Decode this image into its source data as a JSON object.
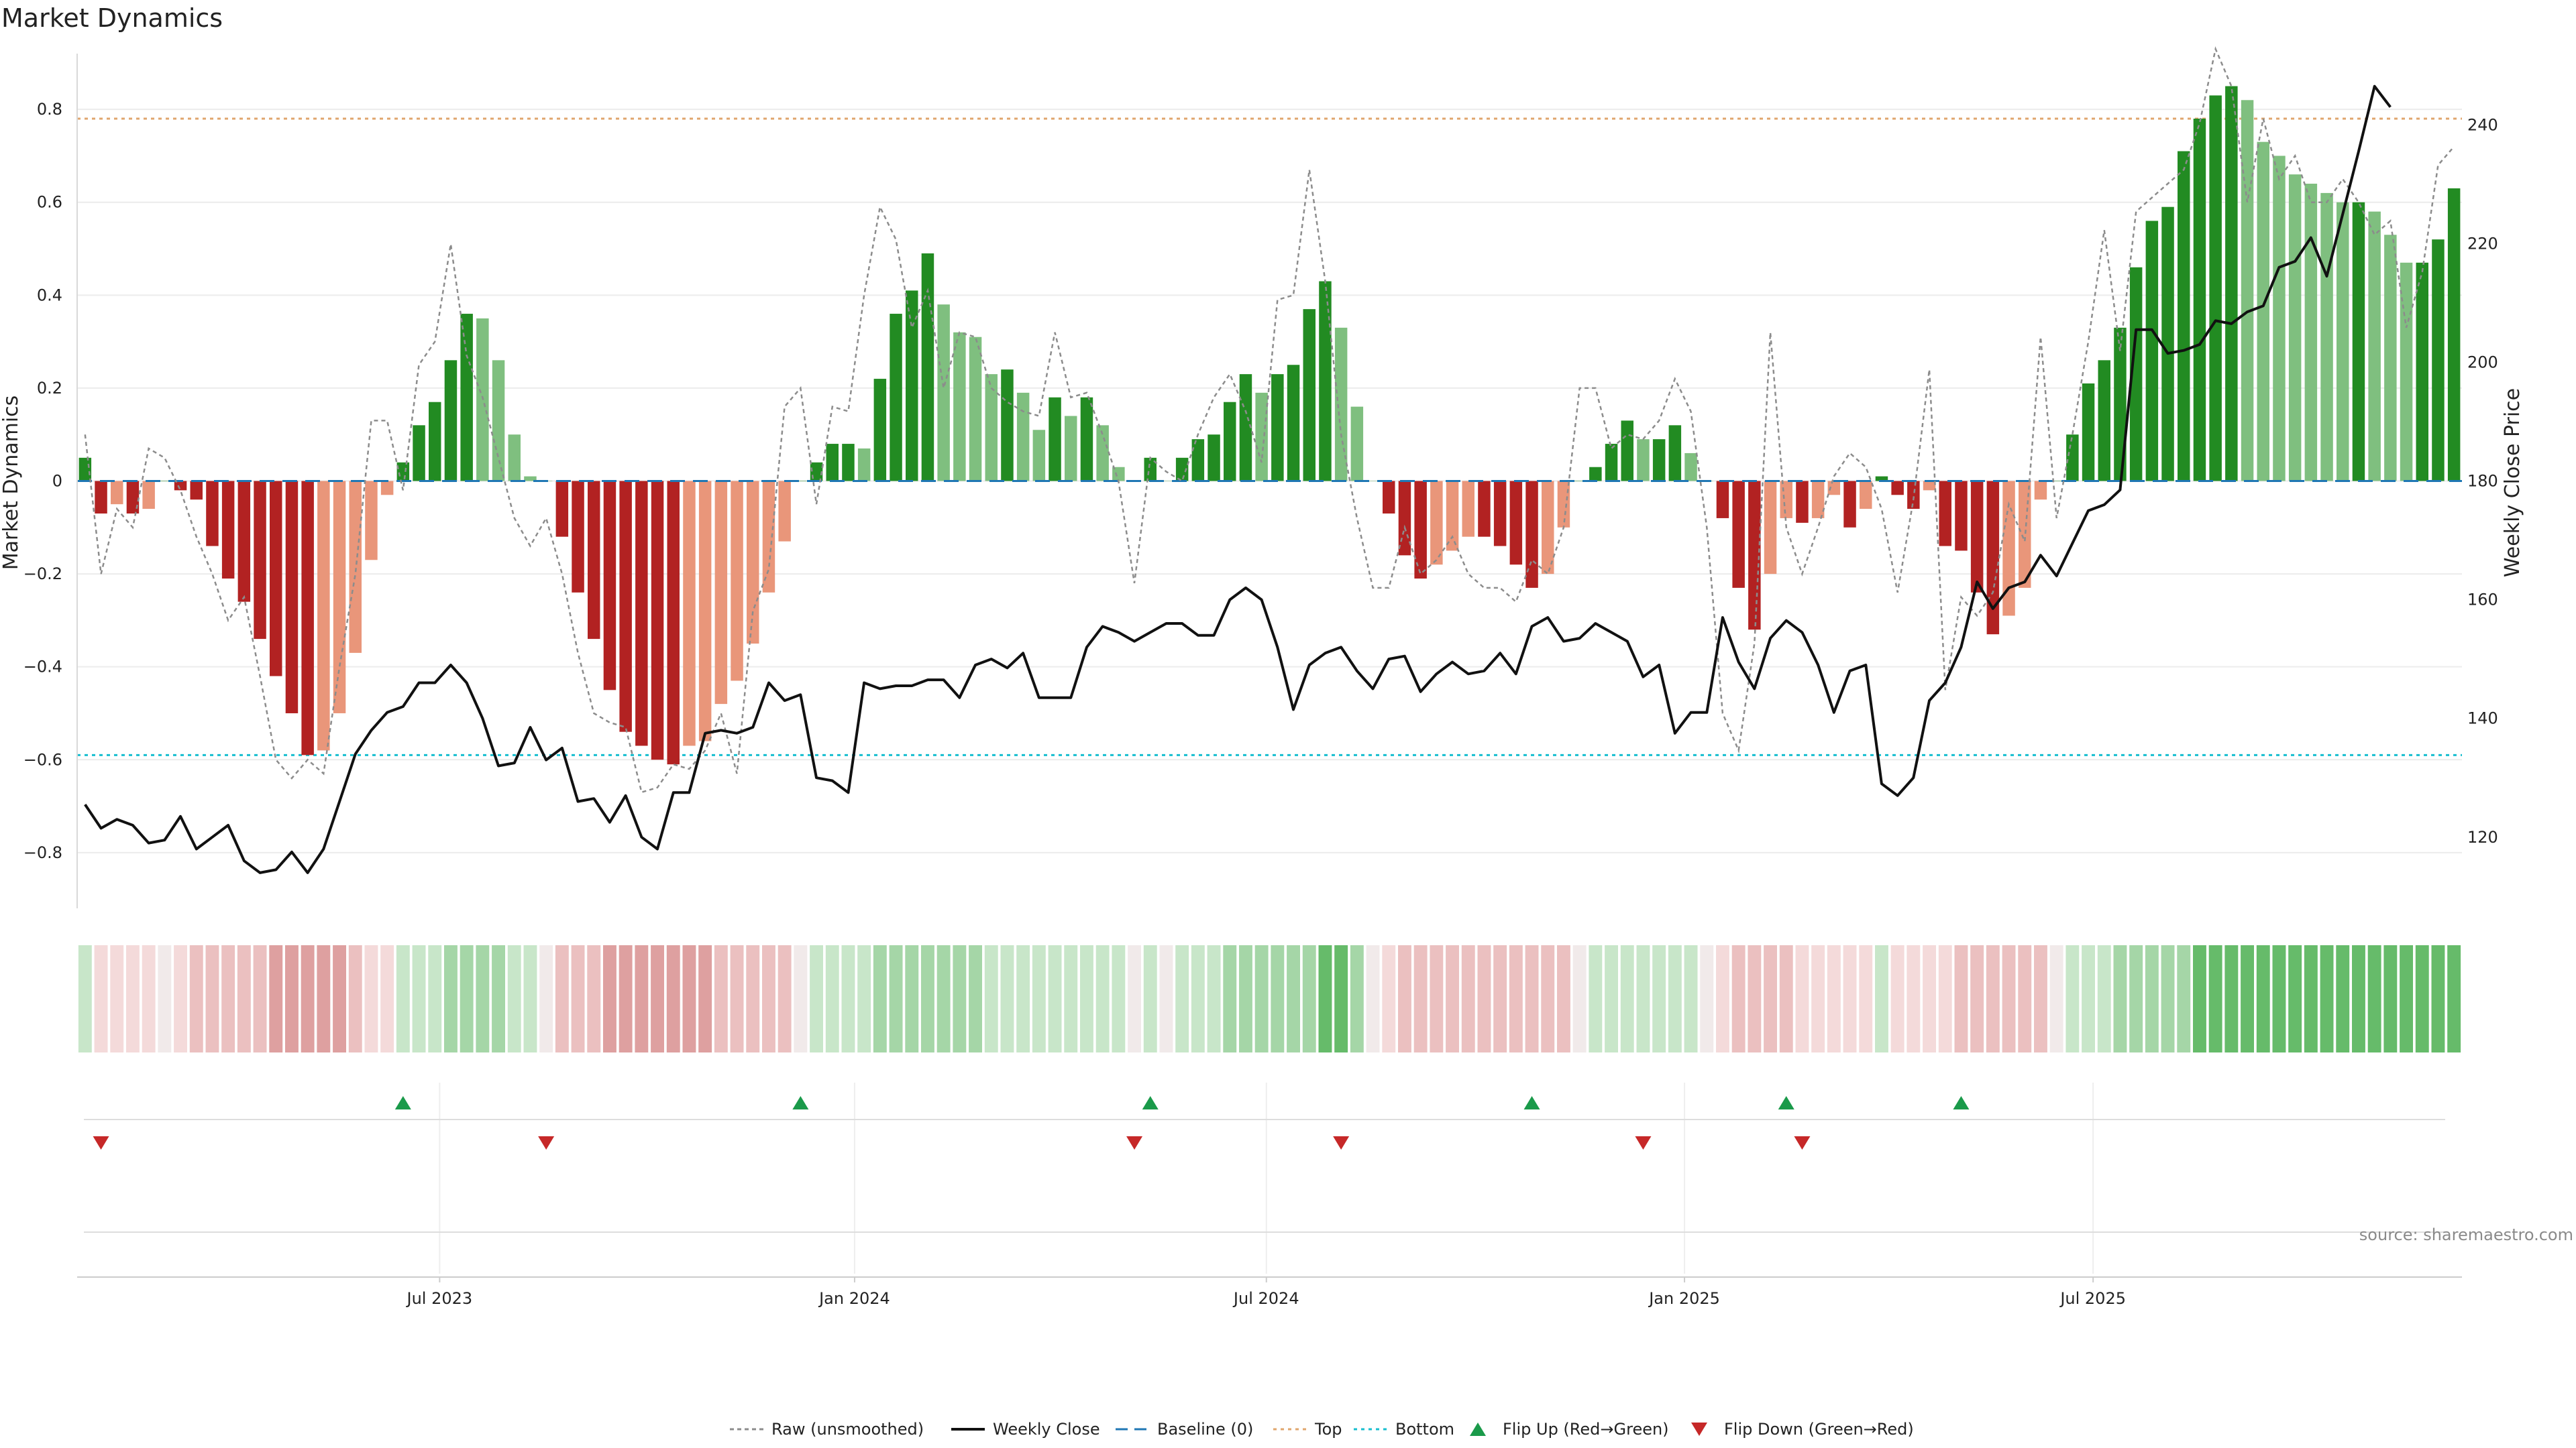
{
  "chart_data": {
    "type": "bar",
    "title": "Market Dynamics",
    "ylabel_left": "Market Dynamics",
    "ylabel_right": "Weekly Close Price",
    "ylim_left": [
      -0.92,
      0.92
    ],
    "ylim_right": [
      108,
      252
    ],
    "yticks_left": [
      -0.8,
      -0.6,
      -0.4,
      -0.2,
      0,
      0.2,
      0.4,
      0.6,
      0.8
    ],
    "ytick_labels_left": [
      "−0.8",
      "−0.6",
      "−0.4",
      "−0.2",
      "0",
      "0.2",
      "0.4",
      "0.6",
      "0.8"
    ],
    "yticks_right": [
      120,
      140,
      160,
      180,
      200,
      220,
      240
    ],
    "ytick_labels_right": [
      "120",
      "140",
      "160",
      "180",
      "200",
      "220",
      "240"
    ],
    "xticks": [
      {
        "week": 22.3,
        "label": "Jul 2023"
      },
      {
        "week": 48.4,
        "label": "Jan 2024"
      },
      {
        "week": 74.3,
        "label": "Jul 2024"
      },
      {
        "week": 100.6,
        "label": "Jan 2025"
      },
      {
        "week": 126.3,
        "label": "Jul 2025"
      }
    ],
    "top_level": 0.78,
    "bottom_level": -0.59,
    "colors": {
      "bar_strong_up": "#228b22",
      "bar_weak_up": "#7fbf7f",
      "bar_strong_down": "#b22222",
      "bar_weak_down": "#e9967a",
      "close_line": "#111111",
      "raw_line": "#8c8c8c",
      "baseline": "#1f77b4",
      "top_line": "#e0a66e",
      "bottom_line": "#17becf",
      "flip_up": "#1a9a4a",
      "flip_down": "#c62828"
    },
    "smoothed": [
      0.05,
      -0.07,
      -0.05,
      -0.07,
      -0.06,
      0.0,
      -0.02,
      -0.04,
      -0.14,
      -0.21,
      -0.26,
      -0.34,
      -0.42,
      -0.5,
      -0.59,
      -0.58,
      -0.5,
      -0.37,
      -0.17,
      -0.03,
      0.04,
      0.12,
      0.17,
      0.26,
      0.36,
      0.35,
      0.26,
      0.1,
      0.01,
      0.0,
      -0.12,
      -0.24,
      -0.34,
      -0.45,
      -0.54,
      -0.57,
      -0.6,
      -0.61,
      -0.57,
      -0.56,
      -0.48,
      -0.43,
      -0.35,
      -0.24,
      -0.13,
      0.0,
      0.04,
      0.08,
      0.08,
      0.07,
      0.22,
      0.36,
      0.41,
      0.49,
      0.38,
      0.32,
      0.31,
      0.23,
      0.24,
      0.19,
      0.11,
      0.18,
      0.14,
      0.18,
      0.12,
      0.03,
      0.0,
      0.05,
      0.0,
      0.05,
      0.09,
      0.1,
      0.17,
      0.23,
      0.19,
      0.23,
      0.25,
      0.37,
      0.43,
      0.33,
      0.16,
      0.0,
      -0.07,
      -0.16,
      -0.21,
      -0.18,
      -0.15,
      -0.12,
      -0.12,
      -0.14,
      -0.18,
      -0.23,
      -0.2,
      -0.1,
      0.0,
      0.03,
      0.08,
      0.13,
      0.09,
      0.09,
      0.12,
      0.06,
      0.0,
      -0.08,
      -0.23,
      -0.32,
      -0.2,
      -0.08,
      -0.09,
      -0.08,
      -0.03,
      -0.1,
      -0.06,
      0.01,
      -0.03,
      -0.06,
      -0.02,
      -0.14,
      -0.15,
      -0.24,
      -0.33,
      -0.29,
      -0.23,
      -0.04,
      0.0,
      0.1,
      0.21,
      0.26,
      0.33,
      0.46,
      0.56,
      0.59,
      0.71,
      0.78,
      0.83,
      0.85,
      0.82,
      0.73,
      0.7,
      0.66,
      0.64,
      0.62,
      0.6,
      0.6,
      0.58,
      0.53,
      0.47,
      0.47,
      0.52,
      0.63
    ],
    "raw": [
      0.1,
      -0.2,
      -0.06,
      -0.1,
      0.07,
      0.05,
      -0.02,
      -0.12,
      -0.2,
      -0.3,
      -0.25,
      -0.42,
      -0.6,
      -0.64,
      -0.6,
      -0.63,
      -0.4,
      -0.2,
      0.13,
      0.13,
      -0.02,
      0.25,
      0.3,
      0.51,
      0.27,
      0.18,
      0.05,
      -0.08,
      -0.14,
      -0.08,
      -0.2,
      -0.37,
      -0.5,
      -0.52,
      -0.53,
      -0.67,
      -0.66,
      -0.61,
      -0.62,
      -0.58,
      -0.5,
      -0.63,
      -0.28,
      -0.19,
      0.16,
      0.2,
      -0.05,
      0.16,
      0.15,
      0.4,
      0.59,
      0.52,
      0.33,
      0.41,
      0.2,
      0.32,
      0.31,
      0.2,
      0.17,
      0.15,
      0.14,
      0.32,
      0.18,
      0.19,
      0.1,
      0.0,
      -0.22,
      0.05,
      0.02,
      0.0,
      0.1,
      0.18,
      0.23,
      0.15,
      0.04,
      0.39,
      0.4,
      0.67,
      0.43,
      0.1,
      -0.08,
      -0.23,
      -0.23,
      -0.1,
      -0.2,
      -0.17,
      -0.12,
      -0.2,
      -0.23,
      -0.23,
      -0.26,
      -0.17,
      -0.2,
      -0.1,
      0.2,
      0.2,
      0.07,
      0.1,
      0.09,
      0.13,
      0.22,
      0.15,
      -0.1,
      -0.5,
      -0.58,
      -0.35,
      0.32,
      -0.1,
      -0.2,
      -0.1,
      0.01,
      0.06,
      0.03,
      -0.06,
      -0.24,
      -0.04,
      0.24,
      -0.45,
      -0.25,
      -0.29,
      -0.24,
      -0.05,
      -0.13,
      0.31,
      -0.08,
      0.1,
      0.3,
      0.54,
      0.28,
      0.58,
      0.61,
      0.64,
      0.67,
      0.77,
      0.93,
      0.85,
      0.6,
      0.78,
      0.65,
      0.7,
      0.6,
      0.6,
      0.65,
      0.6,
      0.53,
      0.56,
      0.33,
      0.45,
      0.68,
      0.72
    ],
    "close": [
      125.5,
      121.5,
      123,
      122,
      119,
      119.5,
      123.5,
      118,
      120,
      122,
      116,
      114,
      114.5,
      117.5,
      114,
      118,
      126,
      134,
      138,
      141,
      142,
      146,
      146,
      149,
      146,
      140,
      132,
      132.5,
      138.5,
      133,
      135,
      126,
      126.5,
      122.5,
      127,
      120,
      118,
      127.5,
      127.5,
      137.5,
      138,
      137.5,
      138.5,
      146,
      143,
      144,
      130,
      129.5,
      127.5,
      146,
      145,
      145.5,
      145.5,
      146.5,
      146.5,
      143.5,
      149,
      150,
      148.5,
      151,
      143.5,
      143.5,
      143.5,
      152,
      155.5,
      154.5,
      153,
      154.5,
      156,
      156,
      154,
      154,
      160,
      162,
      160,
      152,
      141.5,
      149,
      151,
      152,
      148,
      145,
      150,
      150.5,
      144.5,
      147.5,
      149.5,
      147.5,
      148,
      151,
      147.5,
      155.5,
      157,
      153,
      153.5,
      156,
      154.5,
      153,
      147,
      149,
      137.5,
      141,
      141,
      157,
      149.5,
      145,
      153.5,
      156.5,
      154.5,
      149,
      141,
      148,
      149,
      129,
      127,
      130,
      143,
      146,
      152,
      163,
      158.5,
      162,
      163,
      167.5,
      164,
      169.5,
      175,
      176,
      178.5,
      205.5,
      205.5,
      201.5,
      202,
      203,
      207,
      206.5,
      208.5,
      209.5,
      216,
      217,
      221,
      214.5,
      225,
      235.5,
      246.5,
      243
    ],
    "heat_strip": [
      1,
      1,
      1,
      1,
      1,
      1,
      1,
      2,
      2,
      2,
      2,
      2,
      3,
      3,
      3,
      3,
      3,
      2,
      1,
      1,
      1,
      1,
      1,
      2,
      2,
      2,
      2,
      1,
      1,
      1,
      2,
      2,
      2,
      3,
      3,
      3,
      3,
      3,
      3,
      3,
      2,
      2,
      2,
      2,
      2,
      1,
      1,
      1,
      1,
      1,
      2,
      2,
      2,
      2,
      2,
      2,
      2,
      1,
      1,
      1,
      1,
      1,
      1,
      1,
      1,
      1,
      1,
      1,
      1,
      1,
      1,
      1,
      2,
      2,
      2,
      2,
      2,
      2,
      3,
      3,
      2,
      1,
      1,
      2,
      2,
      2,
      2,
      2,
      2,
      2,
      2,
      2,
      2,
      2,
      1,
      1,
      1,
      1,
      1,
      1,
      1,
      1,
      1,
      1,
      2,
      2,
      2,
      2,
      1,
      1,
      1,
      1,
      1,
      1,
      1,
      1,
      1,
      1,
      2,
      2,
      2,
      2,
      2,
      2,
      2,
      1,
      1,
      1,
      2,
      2,
      2,
      2,
      2,
      3,
      3,
      3,
      3,
      3,
      3,
      3,
      3,
      3,
      3,
      3,
      3,
      3,
      3,
      3,
      3,
      3,
      3
    ],
    "flip_up_weeks": [
      20,
      45,
      67,
      91,
      107,
      118
    ],
    "flip_down_weeks": [
      1,
      29,
      66,
      79,
      98,
      108
    ],
    "legend": [
      {
        "key": "raw",
        "label": "Raw (unsmoothed)"
      },
      {
        "key": "close",
        "label": "Weekly Close"
      },
      {
        "key": "baseline",
        "label": "Baseline (0)"
      },
      {
        "key": "top",
        "label": "Top"
      },
      {
        "key": "bottom",
        "label": "Bottom"
      },
      {
        "key": "flip_up",
        "label": "Flip Up (Red→Green)"
      },
      {
        "key": "flip_down",
        "label": "Flip Down (Green→Red)"
      }
    ],
    "legend_position": "bottom-center",
    "source": "source: sharemaestro.com"
  }
}
